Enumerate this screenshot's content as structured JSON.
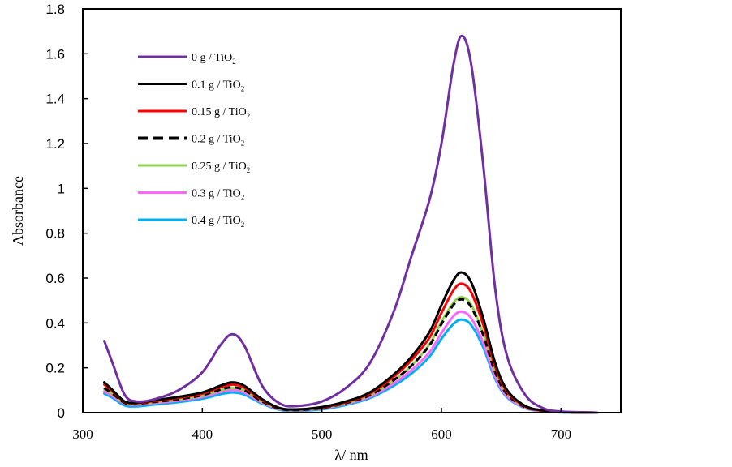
{
  "chart_data": {
    "type": "line",
    "title": "",
    "xlabel": "λ/ nm",
    "ylabel": "Absorbance",
    "xlim": [
      300,
      750
    ],
    "ylim": [
      0,
      1.8
    ],
    "x_ticks": [
      300,
      400,
      500,
      600,
      700
    ],
    "x_tick_labels": [
      "300",
      "400",
      "500",
      "600",
      "700"
    ],
    "y_ticks": [
      0,
      0.2,
      0.4,
      0.6,
      0.8,
      1,
      1.2,
      1.4,
      1.6,
      1.8
    ],
    "y_tick_labels": [
      "0",
      "0.2",
      "0.4",
      "0.6",
      "0.8",
      "1",
      "1.2",
      "1.4",
      "1.6",
      "1.8"
    ],
    "grid": false,
    "legend_position": "top-left",
    "x": [
      318,
      325,
      335,
      345,
      360,
      380,
      400,
      415,
      425,
      435,
      450,
      465,
      480,
      500,
      520,
      540,
      560,
      575,
      590,
      600,
      610,
      617,
      625,
      635,
      645,
      655,
      670,
      685,
      700,
      730
    ],
    "series": [
      {
        "name": "0 g / TiO2",
        "label_main": "0 g / TiO",
        "label_sub": "2",
        "color": "#7030a0",
        "dashed": false,
        "values": [
          0.32,
          0.22,
          0.08,
          0.05,
          0.06,
          0.1,
          0.18,
          0.3,
          0.35,
          0.3,
          0.12,
          0.04,
          0.03,
          0.05,
          0.11,
          0.22,
          0.45,
          0.7,
          0.95,
          1.2,
          1.55,
          1.68,
          1.55,
          1.1,
          0.55,
          0.25,
          0.08,
          0.02,
          0.005,
          0.0
        ]
      },
      {
        "name": "0.1 g / TiO2",
        "label_main": "0.1 g / TiO",
        "label_sub": "2",
        "color": "#000000",
        "dashed": false,
        "values": [
          0.135,
          0.1,
          0.05,
          0.045,
          0.055,
          0.07,
          0.09,
          0.12,
          0.135,
          0.12,
          0.06,
          0.02,
          0.015,
          0.025,
          0.05,
          0.09,
          0.17,
          0.25,
          0.36,
          0.48,
          0.59,
          0.625,
          0.58,
          0.42,
          0.22,
          0.1,
          0.03,
          0.01,
          0.003,
          0.0
        ]
      },
      {
        "name": "0.15 g / TiO2",
        "label_main": "0.15 g / TiO",
        "label_sub": "2",
        "color": "#ff0000",
        "dashed": false,
        "values": [
          0.125,
          0.095,
          0.048,
          0.043,
          0.052,
          0.066,
          0.085,
          0.113,
          0.125,
          0.112,
          0.056,
          0.019,
          0.014,
          0.023,
          0.047,
          0.085,
          0.16,
          0.235,
          0.335,
          0.445,
          0.545,
          0.575,
          0.535,
          0.39,
          0.205,
          0.093,
          0.028,
          0.009,
          0.003,
          0.0
        ]
      },
      {
        "name": "0.2 g / TiO2",
        "label_main": "0.2 g / TiO",
        "label_sub": "2",
        "color": "#000000",
        "dashed": true,
        "values": [
          0.11,
          0.085,
          0.044,
          0.04,
          0.048,
          0.06,
          0.078,
          0.103,
          0.113,
          0.101,
          0.05,
          0.017,
          0.012,
          0.021,
          0.043,
          0.078,
          0.145,
          0.21,
          0.3,
          0.395,
          0.48,
          0.505,
          0.47,
          0.345,
          0.18,
          0.082,
          0.025,
          0.008,
          0.002,
          0.0
        ]
      },
      {
        "name": "0.25 g / TiO2",
        "label_main": "0.25 g / TiO",
        "label_sub": "2",
        "color": "#92d050",
        "dashed": false,
        "values": [
          0.105,
          0.082,
          0.043,
          0.039,
          0.047,
          0.059,
          0.076,
          0.1,
          0.11,
          0.099,
          0.049,
          0.017,
          0.012,
          0.021,
          0.042,
          0.077,
          0.143,
          0.21,
          0.305,
          0.405,
          0.49,
          0.515,
          0.48,
          0.35,
          0.183,
          0.083,
          0.025,
          0.008,
          0.002,
          0.0
        ]
      },
      {
        "name": "0.3 g / TiO2",
        "label_main": "0.3 g / TiO",
        "label_sub": "2",
        "color": "#ff66ff",
        "dashed": false,
        "values": [
          0.095,
          0.074,
          0.04,
          0.036,
          0.043,
          0.054,
          0.07,
          0.092,
          0.1,
          0.09,
          0.045,
          0.015,
          0.011,
          0.019,
          0.039,
          0.071,
          0.13,
          0.19,
          0.27,
          0.355,
          0.43,
          0.45,
          0.42,
          0.31,
          0.16,
          0.073,
          0.022,
          0.007,
          0.002,
          0.0
        ]
      },
      {
        "name": "0.4 g / TiO2",
        "label_main": "0.4 g / TiO",
        "label_sub": "2",
        "color": "#00b0f0",
        "dashed": false,
        "values": [
          0.085,
          0.066,
          0.032,
          0.028,
          0.036,
          0.047,
          0.062,
          0.082,
          0.09,
          0.081,
          0.04,
          0.012,
          0.008,
          0.015,
          0.034,
          0.065,
          0.12,
          0.175,
          0.25,
          0.33,
          0.395,
          0.415,
          0.39,
          0.29,
          0.15,
          0.068,
          0.02,
          0.006,
          0.001,
          0.0
        ]
      }
    ]
  }
}
